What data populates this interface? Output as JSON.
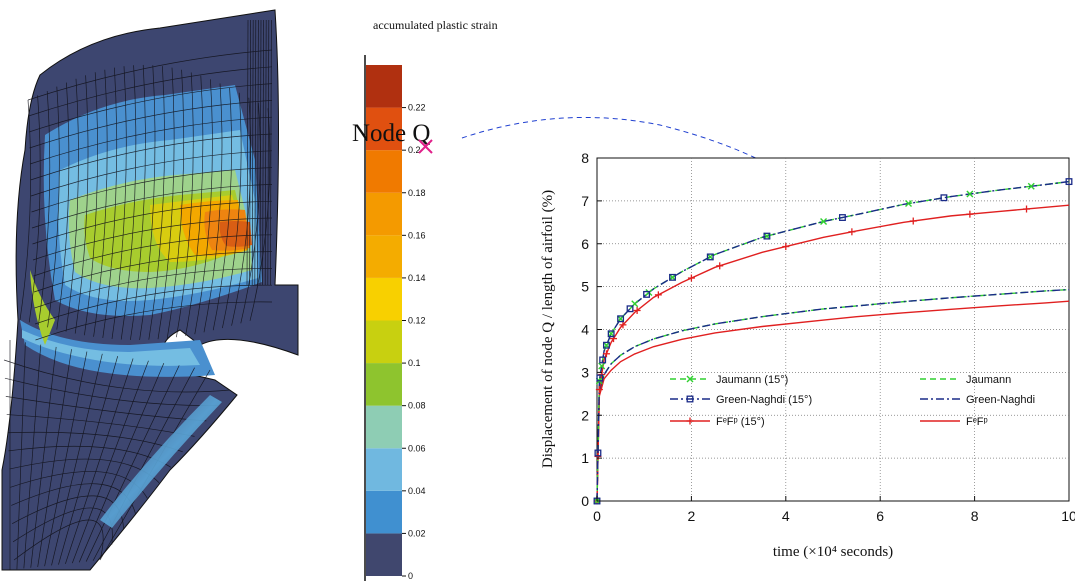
{
  "colorbar": {
    "title": "accumulated plastic strain",
    "ticks": [
      "0",
      "0.02",
      "0.04",
      "0.06",
      "0.08",
      "0.1",
      "0.12",
      "0.14",
      "0.16",
      "0.18",
      "0.2",
      "0.22"
    ],
    "colors": [
      "#40476e",
      "#4090d0",
      "#70b8e0",
      "#8ecdb4",
      "#8ec42e",
      "#c8d010",
      "#f8d000",
      "#f4ac00",
      "#f49a00",
      "#f07a00",
      "#e05010",
      "#b03010"
    ]
  },
  "annotation": {
    "node_label": "Node Q",
    "marker_color": "#e0208a",
    "arrow_color": "#2040d0"
  },
  "mesh_palette": [
    "#3d4670",
    "#4a90cf",
    "#74bde2",
    "#9ed28c",
    "#a8cc2e",
    "#d8cc10",
    "#f3a800",
    "#ee8410",
    "#d95e14"
  ],
  "chart_data": {
    "type": "line",
    "xlabel": "time (×10⁴ seconds)",
    "ylabel": "Displacement of node Q / length of airfoil (%)",
    "xlim": [
      0,
      10
    ],
    "ylim": [
      0,
      8
    ],
    "xticks": [
      "0",
      "2",
      "4",
      "6",
      "8",
      "10"
    ],
    "yticks": [
      "0",
      "1",
      "2",
      "3",
      "4",
      "5",
      "6",
      "7",
      "8"
    ],
    "grid": true,
    "legend_position": "lower-center",
    "series": [
      {
        "name": "Jaumann (15°)",
        "color": "#30d030",
        "dash": "6,4",
        "marker": "x",
        "x": [
          0,
          0.05,
          0.15,
          0.3,
          0.5,
          0.8,
          1.2,
          1.8,
          2.5,
          3.5,
          4.8,
          5.5,
          6.5,
          7.5,
          8.5,
          9.5,
          10
        ],
        "y": [
          0,
          2.8,
          3.5,
          3.9,
          4.25,
          4.6,
          4.95,
          5.35,
          5.75,
          6.15,
          6.52,
          6.68,
          6.92,
          7.1,
          7.25,
          7.38,
          7.45
        ],
        "markers_x": [
          0,
          0.05,
          0.1,
          0.2,
          0.3,
          0.5,
          0.8,
          1.1,
          1.6,
          2.4,
          3.6,
          4.8,
          6.6,
          7.9,
          9.2
        ]
      },
      {
        "name": "Green-Naghdi (15°)",
        "color": "#1a2b88",
        "dash": "8,3,2,3",
        "marker": "s",
        "x": [
          0,
          0.05,
          0.15,
          0.3,
          0.5,
          0.8,
          1.2,
          1.8,
          2.5,
          3.5,
          4.8,
          5.5,
          6.5,
          7.5,
          8.5,
          9.5,
          10
        ],
        "y": [
          0,
          2.8,
          3.5,
          3.9,
          4.25,
          4.6,
          4.95,
          5.35,
          5.75,
          6.15,
          6.52,
          6.68,
          6.92,
          7.1,
          7.25,
          7.38,
          7.45
        ],
        "markers_x": [
          0,
          0.02,
          0.06,
          0.12,
          0.2,
          0.3,
          0.5,
          0.7,
          1.05,
          1.6,
          2.4,
          3.6,
          5.2,
          7.35,
          10
        ]
      },
      {
        "name": "FᵉFᵖ (15°)",
        "color": "#e02020",
        "dash": "",
        "marker": "+",
        "x": [
          0,
          0.05,
          0.15,
          0.3,
          0.5,
          0.8,
          1.2,
          1.8,
          2.5,
          3.5,
          4.8,
          5.5,
          6.5,
          7.5,
          8.5,
          9.5,
          10
        ],
        "y": [
          0,
          2.6,
          3.3,
          3.7,
          4.05,
          4.4,
          4.75,
          5.1,
          5.45,
          5.8,
          6.15,
          6.3,
          6.5,
          6.65,
          6.75,
          6.85,
          6.9
        ],
        "markers_x": [
          0,
          0.02,
          0.05,
          0.1,
          0.2,
          0.35,
          0.55,
          0.85,
          1.3,
          2.0,
          2.6,
          4.0,
          5.4,
          6.7,
          7.9,
          9.1
        ]
      },
      {
        "name": "Jaumann",
        "color": "#30d030",
        "dash": "6,4",
        "marker": "",
        "x": [
          0,
          0.05,
          0.15,
          0.3,
          0.5,
          0.8,
          1.2,
          1.8,
          2.5,
          3.5,
          4.8,
          5.5,
          6.5,
          7.5,
          8.5,
          9.5,
          10
        ],
        "y": [
          0,
          2.55,
          2.95,
          3.2,
          3.4,
          3.6,
          3.78,
          3.97,
          4.13,
          4.3,
          4.48,
          4.55,
          4.65,
          4.74,
          4.82,
          4.9,
          4.93
        ]
      },
      {
        "name": "Green-Naghdi",
        "color": "#1a2b88",
        "dash": "8,3,2,3",
        "marker": "",
        "x": [
          0,
          0.05,
          0.15,
          0.3,
          0.5,
          0.8,
          1.2,
          1.8,
          2.5,
          3.5,
          4.8,
          5.5,
          6.5,
          7.5,
          8.5,
          9.5,
          10
        ],
        "y": [
          0,
          2.55,
          2.95,
          3.2,
          3.4,
          3.6,
          3.78,
          3.97,
          4.13,
          4.3,
          4.48,
          4.55,
          4.65,
          4.74,
          4.82,
          4.9,
          4.93
        ]
      },
      {
        "name": "FᵉFᵖ",
        "color": "#e02020",
        "dash": "",
        "marker": "",
        "x": [
          0,
          0.05,
          0.15,
          0.3,
          0.5,
          0.8,
          1.2,
          1.8,
          2.5,
          3.5,
          4.8,
          5.5,
          6.5,
          7.5,
          8.5,
          9.5,
          10
        ],
        "y": [
          0,
          2.45,
          2.85,
          3.05,
          3.25,
          3.43,
          3.6,
          3.77,
          3.92,
          4.07,
          4.22,
          4.3,
          4.39,
          4.47,
          4.55,
          4.62,
          4.66
        ]
      }
    ]
  }
}
